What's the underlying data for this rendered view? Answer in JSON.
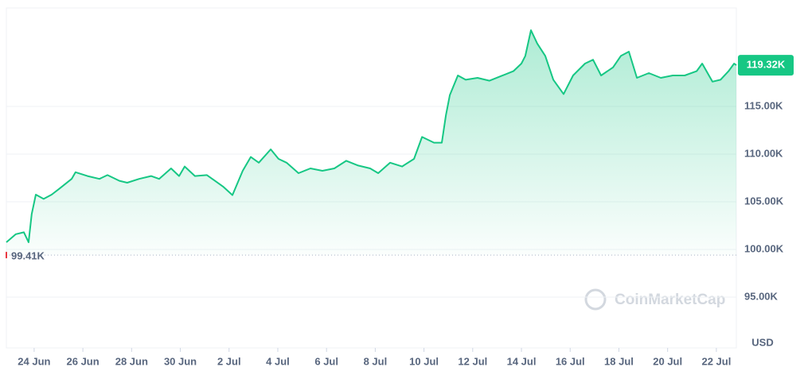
{
  "chart_data": {
    "type": "line",
    "unit": "USD",
    "watermark": "CoinMarketCap",
    "color": "#16c784",
    "grid": true,
    "x": [
      -1.14,
      -0.75,
      -0.42,
      -0.23,
      -0.1,
      0.07,
      0.39,
      0.72,
      1.05,
      1.54,
      1.7,
      2.19,
      2.68,
      3.01,
      3.5,
      3.82,
      4.31,
      4.8,
      5.13,
      5.62,
      5.95,
      6.18,
      6.6,
      7.09,
      7.42,
      7.75,
      8.14,
      8.56,
      8.89,
      9.22,
      9.71,
      10.03,
      10.36,
      10.85,
      11.34,
      11.83,
      12.32,
      12.81,
      13.3,
      13.79,
      14.12,
      14.61,
      15.1,
      15.59,
      15.92,
      16.41,
      16.73,
      16.9,
      17.06,
      17.39,
      17.71,
      18.2,
      18.69,
      19.18,
      19.67,
      20.0,
      20.16,
      20.39,
      20.65,
      20.98,
      21.31,
      21.73,
      22.12,
      22.61,
      22.94,
      23.27,
      23.76,
      24.08,
      24.41,
      24.74,
      25.23,
      25.72,
      26.21,
      26.7,
      27.19,
      27.42,
      27.84,
      28.17,
      28.5,
      28.73,
      28.82
    ],
    "values": [
      100.75,
      101.6,
      101.8,
      100.75,
      103.7,
      105.75,
      105.3,
      105.75,
      106.4,
      107.4,
      108.1,
      107.7,
      107.4,
      107.8,
      107.2,
      107.0,
      107.4,
      107.7,
      107.4,
      108.5,
      107.7,
      108.7,
      107.7,
      107.8,
      107.2,
      106.6,
      105.7,
      108.25,
      109.7,
      109.1,
      110.5,
      109.5,
      109.1,
      108.0,
      108.5,
      108.25,
      108.5,
      109.3,
      108.8,
      108.5,
      108.0,
      109.1,
      108.7,
      109.5,
      111.8,
      111.2,
      111.2,
      114.1,
      116.2,
      118.25,
      117.8,
      118.0,
      117.7,
      118.2,
      118.7,
      119.5,
      120.3,
      123.0,
      121.6,
      120.3,
      117.8,
      116.3,
      118.25,
      119.5,
      119.9,
      118.25,
      119.1,
      120.3,
      120.75,
      118.0,
      118.5,
      118.0,
      118.25,
      118.25,
      118.7,
      119.5,
      117.6,
      117.8,
      118.7,
      119.5,
      119.32
    ],
    "xlim": [
      -1.14,
      28.82
    ],
    "xticks": [
      {
        "value": 0,
        "label": "24 Jun"
      },
      {
        "value": 2,
        "label": "26 Jun"
      },
      {
        "value": 4,
        "label": "28 Jun"
      },
      {
        "value": 6,
        "label": "30 Jun"
      },
      {
        "value": 8,
        "label": "2 Jul"
      },
      {
        "value": 10,
        "label": "4 Jul"
      },
      {
        "value": 12,
        "label": "6 Jul"
      },
      {
        "value": 14,
        "label": "8 Jul"
      },
      {
        "value": 16,
        "label": "10 Jul"
      },
      {
        "value": 18,
        "label": "12 Jul"
      },
      {
        "value": 20,
        "label": "14 Jul"
      },
      {
        "value": 22,
        "label": "16 Jul"
      },
      {
        "value": 24,
        "label": "18 Jul"
      },
      {
        "value": 26,
        "label": "20 Jul"
      },
      {
        "value": 28,
        "label": "22 Jul"
      }
    ],
    "ylim": [
      89.67,
      125.33
    ],
    "yticks": [
      {
        "value": 95,
        "label": "95.00K"
      },
      {
        "value": 100,
        "label": "100.00K"
      },
      {
        "value": 105,
        "label": "105.00K"
      },
      {
        "value": 110,
        "label": "110.00K"
      },
      {
        "value": 115,
        "label": "115.00K"
      }
    ],
    "current_price": {
      "value": 119.32,
      "label": "119.32K"
    },
    "open_price": {
      "value": 99.41,
      "label": "99.41K"
    }
  }
}
